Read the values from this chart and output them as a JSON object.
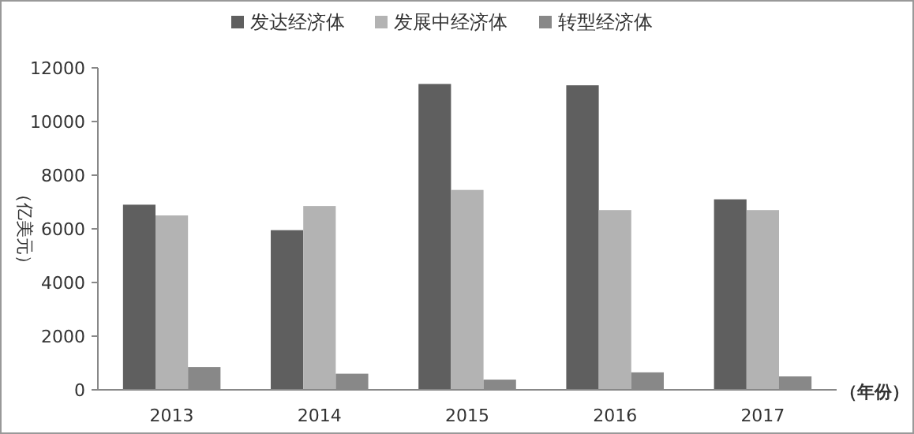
{
  "chart_data": {
    "type": "bar",
    "xlabel": "（年份）",
    "ylabel": "（亿美元）",
    "categories": [
      "2013",
      "2014",
      "2015",
      "2016",
      "2017"
    ],
    "series": [
      {
        "name": "发达经济体",
        "color": "#5f5f5f",
        "values": [
          6900,
          5950,
          11400,
          11350,
          7100
        ]
      },
      {
        "name": "发展中经济体",
        "color": "#b3b3b3",
        "values": [
          6500,
          6850,
          7450,
          6700,
          6700
        ]
      },
      {
        "name": "转型经济体",
        "color": "#888888",
        "values": [
          850,
          600,
          380,
          650,
          500
        ]
      }
    ],
    "ylim": [
      0,
      12000
    ],
    "yticks": [
      0,
      2000,
      4000,
      6000,
      8000,
      10000,
      12000
    ],
    "grid": false,
    "legend": "top"
  }
}
